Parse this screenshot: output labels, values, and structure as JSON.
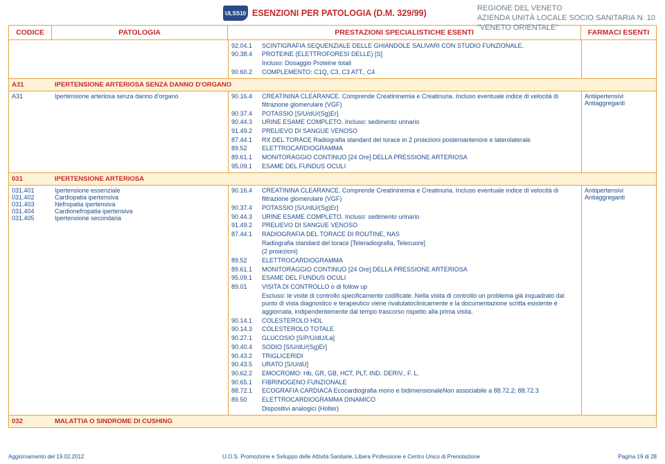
{
  "header": {
    "org_line1": "REGIONE DEL VENETO",
    "org_line2": "AZIENDA UNITÀ LOCALE SOCIO SANITARIA N. 10",
    "org_line3": "\"VENETO ORIENTALE\"",
    "logo_text": "ULSS10",
    "title": "ESENZIONI PER PATOLOGIA (D.M. 329/99)"
  },
  "columns": {
    "code": "CODICE",
    "pat": "PATOLOGIA",
    "prest": "PRESTAZIONI SPECIALISTICHE ESENTI",
    "farm": "FARMACI ESENTI"
  },
  "top_block": {
    "lines": [
      {
        "code": "92.04.1",
        "text": "SCINTIGRAFIA SEQUENZIALE DELLE GHIANDOLE SALIVARI CON STUDIO FUNZIONALE."
      },
      {
        "code": "90.38.4",
        "text": "PROTEINE (ELETTROFORESI DELLE) [S]"
      },
      {
        "code": "",
        "text": "Incluso: Dosaggio Proteine totali"
      },
      {
        "code": "90.60.2",
        "text": "COMPLEMENTO: C1Q, C3, C3 ATT., C4"
      }
    ]
  },
  "sections": [
    {
      "code": "A31",
      "title": "IPERTENSIONE ARTERIOSA SENZA DANNO D'ORGANO"
    }
  ],
  "a31_row": {
    "code": "A31",
    "pat": "Ipertensione arteriosa senza danno d'organo",
    "farm": [
      "Antiipertensivi",
      "Antiaggreganti"
    ],
    "lines": [
      {
        "code": "90.16.4",
        "text": "CREATININA CLEARANCE. Comprende Creatininemia e Creatinuria. Incluso eventuale indice di velocità di filtrazione glomerulare (VGF)"
      },
      {
        "code": "90.37.4",
        "text": "POTASSIO [S/U/dU/(Sg)Er]"
      },
      {
        "code": "90.44.3",
        "text": "URINE ESAME COMPLETO. Incluso: sedimento urinario"
      },
      {
        "code": "91.49.2",
        "text": "PRELIEVO DI SANGUE VENOSO"
      },
      {
        "code": "87.44.1",
        "text": "RX DEL TORACE Radiografia standard del torace in 2 proiezioni posteroanteriore e laterolaterale"
      },
      {
        "code": "89.52",
        "text": "ELETTROCARDIOGRAMMA"
      },
      {
        "code": "89.61.1",
        "text": "MONITORAGGIO CONTINUO [24 Ore] DELLA PRESSIONE ARTERIOSA"
      },
      {
        "code": "95.09.1",
        "text": "ESAME DEL FUNDUS OCULI"
      }
    ]
  },
  "sections2": [
    {
      "code": "031",
      "title": "IPERTENSIONE ARTERIOSA"
    }
  ],
  "r031": {
    "codes": [
      "031.401",
      "031.402",
      "031.403",
      "031.404",
      "031.405"
    ],
    "pats": [
      "Ipertensione essenziale",
      "Cardiopatia ipertensiva",
      "Nefropatia ipertensiva",
      "Cardionefropatia ipertensiva",
      "Ipertensione secondaria"
    ],
    "farm": [
      "Antiipertensivi",
      "Antiaggreganti"
    ],
    "lines": [
      {
        "code": "90.16.4",
        "text": "CREATININA CLEARANCE. Comprende Creatininemia e Creatinuria. Incluso eventuale indice di velocità di filtrazione glomerulare (VGF)"
      },
      {
        "code": "90.37.4",
        "text": "POTASSIO [S/U/dU/(Sg)Er]"
      },
      {
        "code": "90.44.3",
        "text": "URINE ESAME COMPLETO. Incluso: sedimento urinario"
      },
      {
        "code": "91.49.2",
        "text": "PRELIEVO DI SANGUE VENOSO"
      },
      {
        "code": "87.44.1",
        "text": "RADIOGRAFIA DEL TORACE DI ROUTINE, NAS"
      },
      {
        "code": "",
        "text": "Radiografia standard del torace [Teleradiografia, Telecuore]"
      },
      {
        "code": "",
        "text": "(2 proiezioni)"
      },
      {
        "code": "89.52",
        "text": "ELETTROCARDIOGRAMMA"
      },
      {
        "code": "89.61.1",
        "text": "MONITORAGGIO CONTINUO [24 Ore] DELLA PRESSIONE ARTERIOSA"
      },
      {
        "code": "95.09.1",
        "text": "ESAME DEL FUNDUS OCULI"
      },
      {
        "code": "89.01",
        "text": "VISITA DI CONTROLLO o di follow up"
      },
      {
        "code": "",
        "text": "Escluso: le visite di controllo specificamente codificate. Nella visita di controllo un problema già inquadrato dal punto di vista diagnostico e terapeutico viene rivalutatoclinicamente e la documentazione scritta esistente è aggiornata, indipendentemente dal tempo trascorso rispetto alla prima visita."
      },
      {
        "code": "90.14.1",
        "text": "COLESTEROLO HDL"
      },
      {
        "code": "90.14.3",
        "text": "COLESTEROLO TOTALE"
      },
      {
        "code": "90.27.1",
        "text": "GLUCOSIO [S/P/U/dU/La]"
      },
      {
        "code": "90.40.4",
        "text": "SODIO [S/U/dU/(Sg)Er]"
      },
      {
        "code": "90.43.2",
        "text": "TRIGLICERIDI"
      },
      {
        "code": "90.43.5",
        "text": "URATO [S/U/dU]"
      },
      {
        "code": "90.62.2",
        "text": "EMOCROMO:  Hb, GR, GB, HCT, PLT, IND. DERIV., F. L."
      },
      {
        "code": "90.65.1",
        "text": "FIBRINOGENO FUNZIONALE"
      },
      {
        "code": "88.72.1",
        "text": "ECOGRAFIA CARDIACA Ecocardiografia mono e bidimensionaleNon associabile a 88.72.2; 88.72.3"
      },
      {
        "code": "89.50",
        "text": "ELETTROCARDIOGRAMMA DINAMICO"
      },
      {
        "code": "",
        "text": "Dispositivi analogici (Holter)"
      }
    ]
  },
  "sections3": [
    {
      "code": "032",
      "title": "MALATTIA O SINDROME DI CUSHING"
    }
  ],
  "footer": {
    "left": "Aggiornamento del 19.02.2012",
    "mid": "U.O.S. Promozione e Sviluppo delle Attività Sanitarie, Libera Professione e Centro Unico di Prenotazione",
    "right": "Pagina 19 di 28"
  }
}
